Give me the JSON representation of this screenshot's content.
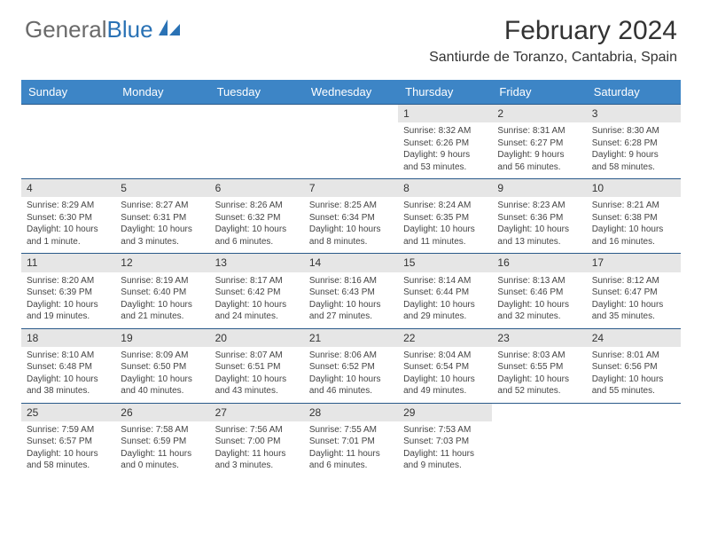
{
  "logo": {
    "text1": "General",
    "text2": "Blue"
  },
  "title": "February 2024",
  "location": "Santiurde de Toranzo, Cantabria, Spain",
  "colors": {
    "header_bg": "#3d85c6",
    "header_fg": "#ffffff",
    "daynum_bg": "#e6e6e6",
    "week_border": "#2a5a8a",
    "logo_gray": "#6a6a6a",
    "logo_blue": "#2a72b5",
    "text": "#444"
  },
  "day_names": [
    "Sunday",
    "Monday",
    "Tuesday",
    "Wednesday",
    "Thursday",
    "Friday",
    "Saturday"
  ],
  "weeks": [
    [
      {
        "day": "",
        "sunrise": "",
        "sunset": "",
        "daylight": ""
      },
      {
        "day": "",
        "sunrise": "",
        "sunset": "",
        "daylight": ""
      },
      {
        "day": "",
        "sunrise": "",
        "sunset": "",
        "daylight": ""
      },
      {
        "day": "",
        "sunrise": "",
        "sunset": "",
        "daylight": ""
      },
      {
        "day": "1",
        "sunrise": "Sunrise: 8:32 AM",
        "sunset": "Sunset: 6:26 PM",
        "daylight": "Daylight: 9 hours and 53 minutes."
      },
      {
        "day": "2",
        "sunrise": "Sunrise: 8:31 AM",
        "sunset": "Sunset: 6:27 PM",
        "daylight": "Daylight: 9 hours and 56 minutes."
      },
      {
        "day": "3",
        "sunrise": "Sunrise: 8:30 AM",
        "sunset": "Sunset: 6:28 PM",
        "daylight": "Daylight: 9 hours and 58 minutes."
      }
    ],
    [
      {
        "day": "4",
        "sunrise": "Sunrise: 8:29 AM",
        "sunset": "Sunset: 6:30 PM",
        "daylight": "Daylight: 10 hours and 1 minute."
      },
      {
        "day": "5",
        "sunrise": "Sunrise: 8:27 AM",
        "sunset": "Sunset: 6:31 PM",
        "daylight": "Daylight: 10 hours and 3 minutes."
      },
      {
        "day": "6",
        "sunrise": "Sunrise: 8:26 AM",
        "sunset": "Sunset: 6:32 PM",
        "daylight": "Daylight: 10 hours and 6 minutes."
      },
      {
        "day": "7",
        "sunrise": "Sunrise: 8:25 AM",
        "sunset": "Sunset: 6:34 PM",
        "daylight": "Daylight: 10 hours and 8 minutes."
      },
      {
        "day": "8",
        "sunrise": "Sunrise: 8:24 AM",
        "sunset": "Sunset: 6:35 PM",
        "daylight": "Daylight: 10 hours and 11 minutes."
      },
      {
        "day": "9",
        "sunrise": "Sunrise: 8:23 AM",
        "sunset": "Sunset: 6:36 PM",
        "daylight": "Daylight: 10 hours and 13 minutes."
      },
      {
        "day": "10",
        "sunrise": "Sunrise: 8:21 AM",
        "sunset": "Sunset: 6:38 PM",
        "daylight": "Daylight: 10 hours and 16 minutes."
      }
    ],
    [
      {
        "day": "11",
        "sunrise": "Sunrise: 8:20 AM",
        "sunset": "Sunset: 6:39 PM",
        "daylight": "Daylight: 10 hours and 19 minutes."
      },
      {
        "day": "12",
        "sunrise": "Sunrise: 8:19 AM",
        "sunset": "Sunset: 6:40 PM",
        "daylight": "Daylight: 10 hours and 21 minutes."
      },
      {
        "day": "13",
        "sunrise": "Sunrise: 8:17 AM",
        "sunset": "Sunset: 6:42 PM",
        "daylight": "Daylight: 10 hours and 24 minutes."
      },
      {
        "day": "14",
        "sunrise": "Sunrise: 8:16 AM",
        "sunset": "Sunset: 6:43 PM",
        "daylight": "Daylight: 10 hours and 27 minutes."
      },
      {
        "day": "15",
        "sunrise": "Sunrise: 8:14 AM",
        "sunset": "Sunset: 6:44 PM",
        "daylight": "Daylight: 10 hours and 29 minutes."
      },
      {
        "day": "16",
        "sunrise": "Sunrise: 8:13 AM",
        "sunset": "Sunset: 6:46 PM",
        "daylight": "Daylight: 10 hours and 32 minutes."
      },
      {
        "day": "17",
        "sunrise": "Sunrise: 8:12 AM",
        "sunset": "Sunset: 6:47 PM",
        "daylight": "Daylight: 10 hours and 35 minutes."
      }
    ],
    [
      {
        "day": "18",
        "sunrise": "Sunrise: 8:10 AM",
        "sunset": "Sunset: 6:48 PM",
        "daylight": "Daylight: 10 hours and 38 minutes."
      },
      {
        "day": "19",
        "sunrise": "Sunrise: 8:09 AM",
        "sunset": "Sunset: 6:50 PM",
        "daylight": "Daylight: 10 hours and 40 minutes."
      },
      {
        "day": "20",
        "sunrise": "Sunrise: 8:07 AM",
        "sunset": "Sunset: 6:51 PM",
        "daylight": "Daylight: 10 hours and 43 minutes."
      },
      {
        "day": "21",
        "sunrise": "Sunrise: 8:06 AM",
        "sunset": "Sunset: 6:52 PM",
        "daylight": "Daylight: 10 hours and 46 minutes."
      },
      {
        "day": "22",
        "sunrise": "Sunrise: 8:04 AM",
        "sunset": "Sunset: 6:54 PM",
        "daylight": "Daylight: 10 hours and 49 minutes."
      },
      {
        "day": "23",
        "sunrise": "Sunrise: 8:03 AM",
        "sunset": "Sunset: 6:55 PM",
        "daylight": "Daylight: 10 hours and 52 minutes."
      },
      {
        "day": "24",
        "sunrise": "Sunrise: 8:01 AM",
        "sunset": "Sunset: 6:56 PM",
        "daylight": "Daylight: 10 hours and 55 minutes."
      }
    ],
    [
      {
        "day": "25",
        "sunrise": "Sunrise: 7:59 AM",
        "sunset": "Sunset: 6:57 PM",
        "daylight": "Daylight: 10 hours and 58 minutes."
      },
      {
        "day": "26",
        "sunrise": "Sunrise: 7:58 AM",
        "sunset": "Sunset: 6:59 PM",
        "daylight": "Daylight: 11 hours and 0 minutes."
      },
      {
        "day": "27",
        "sunrise": "Sunrise: 7:56 AM",
        "sunset": "Sunset: 7:00 PM",
        "daylight": "Daylight: 11 hours and 3 minutes."
      },
      {
        "day": "28",
        "sunrise": "Sunrise: 7:55 AM",
        "sunset": "Sunset: 7:01 PM",
        "daylight": "Daylight: 11 hours and 6 minutes."
      },
      {
        "day": "29",
        "sunrise": "Sunrise: 7:53 AM",
        "sunset": "Sunset: 7:03 PM",
        "daylight": "Daylight: 11 hours and 9 minutes."
      },
      {
        "day": "",
        "sunrise": "",
        "sunset": "",
        "daylight": ""
      },
      {
        "day": "",
        "sunrise": "",
        "sunset": "",
        "daylight": ""
      }
    ]
  ]
}
